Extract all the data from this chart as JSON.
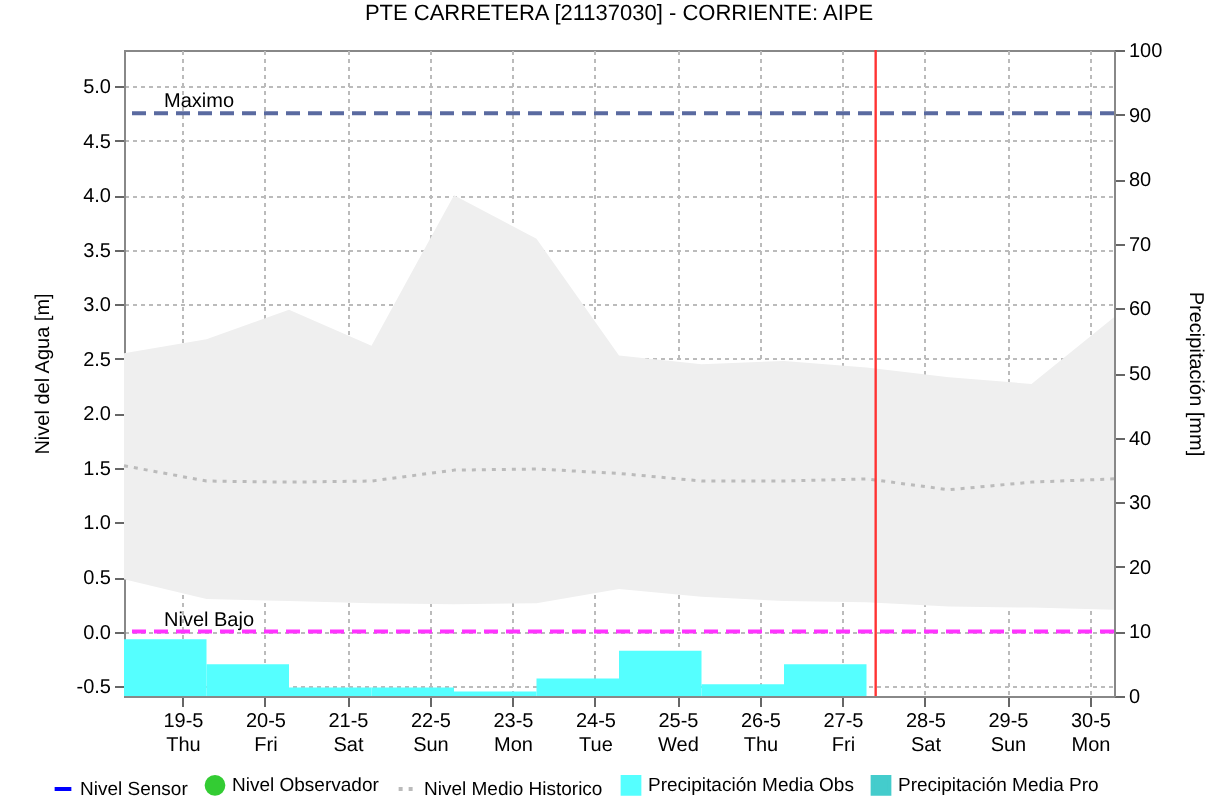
{
  "chart_data": {
    "type": "line",
    "title": "PTE CARRETERA [21137030] - CORRIENTE: AIPE",
    "ylabel": "Nivel del Agua [m]",
    "y2label": "Precipitación [mm]",
    "xlim": [
      "--05-18T07:00",
      "--05-30T07:00"
    ],
    "xticks": [
      {
        "value": "--05-19",
        "label": "19-5\nThu"
      },
      {
        "value": "--05-20",
        "label": "20-5\nFri"
      },
      {
        "value": "--05-21",
        "label": "21-5\nSat"
      },
      {
        "value": "--05-22",
        "label": "22-5\nSun"
      },
      {
        "value": "--05-23",
        "label": "23-5\nMon"
      },
      {
        "value": "--05-24",
        "label": "24-5\nTue"
      },
      {
        "value": "--05-25",
        "label": "25-5\nWed"
      },
      {
        "value": "--05-26",
        "label": "26-5\nThu"
      },
      {
        "value": "--05-27",
        "label": "27-5\nFri"
      },
      {
        "value": "--05-28",
        "label": "28-5\nSat"
      },
      {
        "value": "--05-29",
        "label": "29-5\nSun"
      },
      {
        "value": "--05-30",
        "label": "30-5\nMon"
      }
    ],
    "ylim": [
      -0.59,
      5.33
    ],
    "yticks": [
      -0.5,
      {
        "value": 0,
        "label": "0.0"
      },
      0.5,
      {
        "value": 1,
        "label": "1.0"
      },
      1.5,
      {
        "value": 2,
        "label": "2.0"
      },
      2.5,
      {
        "value": 3,
        "label": "3.0"
      },
      3.5,
      {
        "value": 4,
        "label": "4.0"
      },
      4.5,
      {
        "value": 5,
        "label": "5.0"
      }
    ],
    "y2lim": [
      0,
      100
    ],
    "y2ticks": [
      0,
      10,
      20,
      30,
      40,
      50,
      60,
      70,
      80,
      90,
      100
    ],
    "grid": true,
    "legend": "bottom",
    "series": [
      {
        "name": "Nivel Sensor",
        "color": "#0000ff"
      },
      {
        "name": "Nivel Observador",
        "color": "#33cc33",
        "marker": "circle"
      },
      {
        "name": "Nivel Medio Historico",
        "color": "#bbbbbb",
        "line_style": "dotted",
        "x": [
          "--05-18T07:00",
          "--05-19T07:00",
          "--05-20T07:00",
          "--05-21T07:00",
          "--05-22T07:00",
          "--05-23T07:00",
          "--05-24T07:00",
          "--05-25T07:00",
          "--05-26T07:00",
          "--05-27T07:00",
          "--05-28T07:00",
          "--05-29T07:00",
          "--05-30T07:00"
        ],
        "values": [
          1.52,
          1.38,
          1.37,
          1.38,
          1.48,
          1.49,
          1.45,
          1.38,
          1.38,
          1.4,
          1.3,
          1.37,
          1.4
        ],
        "lower": [
          0.48,
          0.3,
          0.28,
          0.26,
          0.25,
          0.26,
          0.39,
          0.32,
          0.28,
          0.27,
          0.23,
          0.22,
          0.2
        ],
        "upper": [
          2.55,
          2.68,
          2.95,
          2.62,
          4.0,
          3.6,
          2.53,
          2.45,
          2.48,
          2.42,
          2.33,
          2.27,
          2.88
        ]
      },
      {
        "name": "Precipitación Media Obs",
        "type": "bar",
        "axis": "y2",
        "color": "#55ffff",
        "x": [
          "--05-18T07:00",
          "--05-19T07:00",
          "--05-20T07:00",
          "--05-21T07:00",
          "--05-22T07:00",
          "--05-23T07:00",
          "--05-24T07:00",
          "--05-25T07:00",
          "--05-26T07:00"
        ],
        "values": [
          8.8,
          4.9,
          1.3,
          1.3,
          0.7,
          2.7,
          7.0,
          1.8,
          4.9
        ]
      },
      {
        "name": "Precipitación Media Pro",
        "type": "bar",
        "axis": "y2",
        "color": "#44cccc"
      }
    ],
    "ref_lines": [
      {
        "axis": "y",
        "value": 4.75,
        "label": "Maximo",
        "color": "#5a6aa0",
        "line_style": "dashed"
      },
      {
        "axis": "y",
        "value": 0,
        "label": "Nivel Bajo",
        "color": "#ff33ff",
        "line_style": "dashed"
      },
      {
        "axis": "x",
        "value": "--05-27T09:40",
        "color": "#ff3333",
        "line_style": "solid"
      }
    ]
  }
}
